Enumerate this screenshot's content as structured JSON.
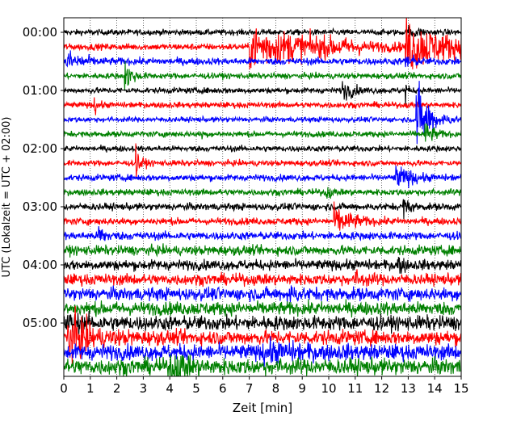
{
  "chart_data": {
    "type": "line",
    "xlabel": "Zeit  [min]",
    "ylabel": "UTC (Lokalzeit = UTC + 02:00)",
    "xlim": [
      0,
      15
    ],
    "x_ticks": [
      "0",
      "1",
      "2",
      "3",
      "4",
      "5",
      "6",
      "7",
      "8",
      "9",
      "10",
      "11",
      "12",
      "13",
      "14",
      "15"
    ],
    "y_ticks": [
      {
        "label": "00:00",
        "row": 0
      },
      {
        "label": "01:00",
        "row": 4
      },
      {
        "label": "02:00",
        "row": 8
      },
      {
        "label": "03:00",
        "row": 12
      },
      {
        "label": "04:00",
        "row": 16
      },
      {
        "label": "05:00",
        "row": 20
      }
    ],
    "grid": "vertical dotted at each minute",
    "trace_minutes": 15,
    "rows_per_hour": 4,
    "color_cycle": [
      "#000000",
      "#ff0000",
      "#0000ff",
      "#008000"
    ],
    "series": [
      {
        "start": "00:00",
        "amp": 0.18,
        "events": [
          {
            "t": 13.0,
            "a": 0.35,
            "d": 0.6
          }
        ]
      },
      {
        "start": "00:15",
        "amp": 0.2,
        "events": [
          {
            "t": 7.0,
            "a": 1.3,
            "d": 4.2
          },
          {
            "t": 12.9,
            "a": 1.6,
            "d": 2.1
          }
        ]
      },
      {
        "start": "00:30",
        "amp": 0.22,
        "events": [
          {
            "t": 0.1,
            "a": 0.6,
            "d": 0.9
          },
          {
            "t": 12.9,
            "a": 0.7,
            "d": 0.3
          }
        ]
      },
      {
        "start": "00:45",
        "amp": 0.18,
        "events": [
          {
            "t": 2.3,
            "a": 0.9,
            "d": 0.4
          }
        ]
      },
      {
        "start": "01:00",
        "amp": 0.18,
        "events": [
          {
            "t": 10.5,
            "a": 0.6,
            "d": 0.6
          },
          {
            "t": 12.9,
            "a": 0.9,
            "d": 0.1
          }
        ]
      },
      {
        "start": "01:15",
        "amp": 0.18,
        "events": [
          {
            "t": 1.15,
            "a": 0.6,
            "d": 0.2
          }
        ]
      },
      {
        "start": "01:30",
        "amp": 0.16,
        "events": [
          {
            "t": 13.3,
            "a": 2.2,
            "d": 0.8
          }
        ]
      },
      {
        "start": "01:45",
        "amp": 0.18,
        "events": [
          {
            "t": 5.2,
            "a": 0.5,
            "d": 0.1
          },
          {
            "t": 13.6,
            "a": 0.7,
            "d": 0.5
          }
        ]
      },
      {
        "start": "02:00",
        "amp": 0.18,
        "events": []
      },
      {
        "start": "02:15",
        "amp": 0.18,
        "events": [
          {
            "t": 2.7,
            "a": 0.9,
            "d": 0.3
          }
        ]
      },
      {
        "start": "02:30",
        "amp": 0.2,
        "events": [
          {
            "t": 12.5,
            "a": 0.7,
            "d": 0.9
          }
        ]
      },
      {
        "start": "02:45",
        "amp": 0.2,
        "events": [
          {
            "t": 9.9,
            "a": 0.5,
            "d": 0.2
          }
        ]
      },
      {
        "start": "03:00",
        "amp": 0.22,
        "events": [
          {
            "t": 12.8,
            "a": 0.5,
            "d": 0.4
          }
        ]
      },
      {
        "start": "03:15",
        "amp": 0.22,
        "events": [
          {
            "t": 10.2,
            "a": 0.8,
            "d": 1.0
          }
        ]
      },
      {
        "start": "03:30",
        "amp": 0.25,
        "events": [
          {
            "t": 1.3,
            "a": 0.6,
            "d": 0.4
          }
        ]
      },
      {
        "start": "03:45",
        "amp": 0.3,
        "events": []
      },
      {
        "start": "04:00",
        "amp": 0.32,
        "events": [
          {
            "t": 12.6,
            "a": 0.5,
            "d": 0.3
          }
        ]
      },
      {
        "start": "04:15",
        "amp": 0.35,
        "events": [
          {
            "t": 11.0,
            "a": 0.3,
            "d": 0.6
          }
        ]
      },
      {
        "start": "04:30",
        "amp": 0.4,
        "events": [
          {
            "t": 8.4,
            "a": 0.4,
            "d": 0.5
          }
        ]
      },
      {
        "start": "04:45",
        "amp": 0.42,
        "events": []
      },
      {
        "start": "05:00",
        "amp": 0.45,
        "events": [
          {
            "t": 0.05,
            "a": 0.4,
            "d": 1.0
          }
        ]
      },
      {
        "start": "05:15",
        "amp": 0.45,
        "events": [
          {
            "t": 0.1,
            "a": 1.4,
            "d": 1.2
          }
        ]
      },
      {
        "start": "05:30",
        "amp": 0.48,
        "events": [
          {
            "t": 7.5,
            "a": 0.4,
            "d": 2.0
          }
        ]
      },
      {
        "start": "05:45",
        "amp": 0.5,
        "events": [
          {
            "t": 4.0,
            "a": 0.9,
            "d": 0.8
          }
        ]
      }
    ]
  }
}
